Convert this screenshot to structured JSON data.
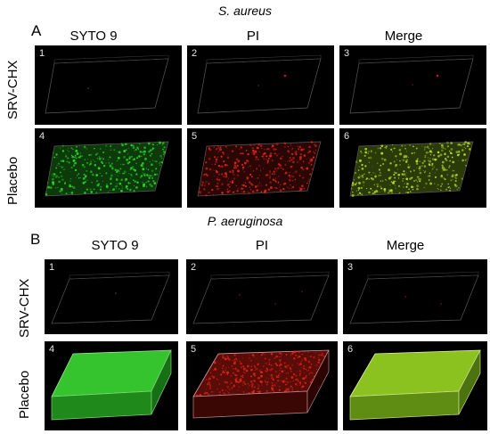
{
  "top": {
    "species": "S. aureus",
    "panel": "A",
    "columns": [
      "SYTO 9",
      "PI",
      "Merge"
    ],
    "rows": [
      "SRV-CHX",
      "Placebo"
    ],
    "tiles": [
      "1",
      "2",
      "3",
      "4",
      "5",
      "6"
    ]
  },
  "bottom": {
    "species": "P. aeruginosa",
    "panel": "B",
    "columns": [
      "SYTO 9",
      "PI",
      "Merge"
    ],
    "rows": [
      "SRV-CHX",
      "Placebo"
    ],
    "tiles": [
      "1",
      "2",
      "3",
      "4",
      "5",
      "6"
    ]
  },
  "colors": {
    "syto9": "#2fd12a",
    "pi": "#e0261b",
    "merge": "#b8d92c",
    "background": "#000000"
  }
}
